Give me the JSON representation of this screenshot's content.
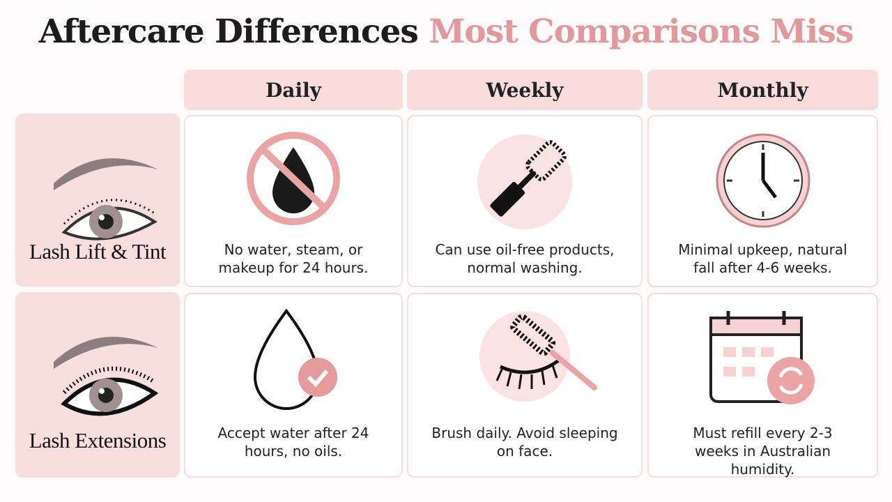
{
  "title": {
    "main": "Aftercare Differences",
    "accent": "Most Comparisons Miss"
  },
  "columns": [
    "Daily",
    "Weekly",
    "Monthly"
  ],
  "rows": [
    {
      "label": "Lash Lift & Tint",
      "cells": [
        "No water, steam, or makeup for 24 hours.",
        "Can use oil-free products, normal washing.",
        "Minimal upkeep, natural fall after 4-6 weeks."
      ]
    },
    {
      "label": "Lash Extensions",
      "cells": [
        "Accept water after 24 hours, no oils.",
        "Brush daily. Avoid sleeping on face.",
        "Must refill every 2-3 weeks in Australian humidity."
      ]
    }
  ]
}
